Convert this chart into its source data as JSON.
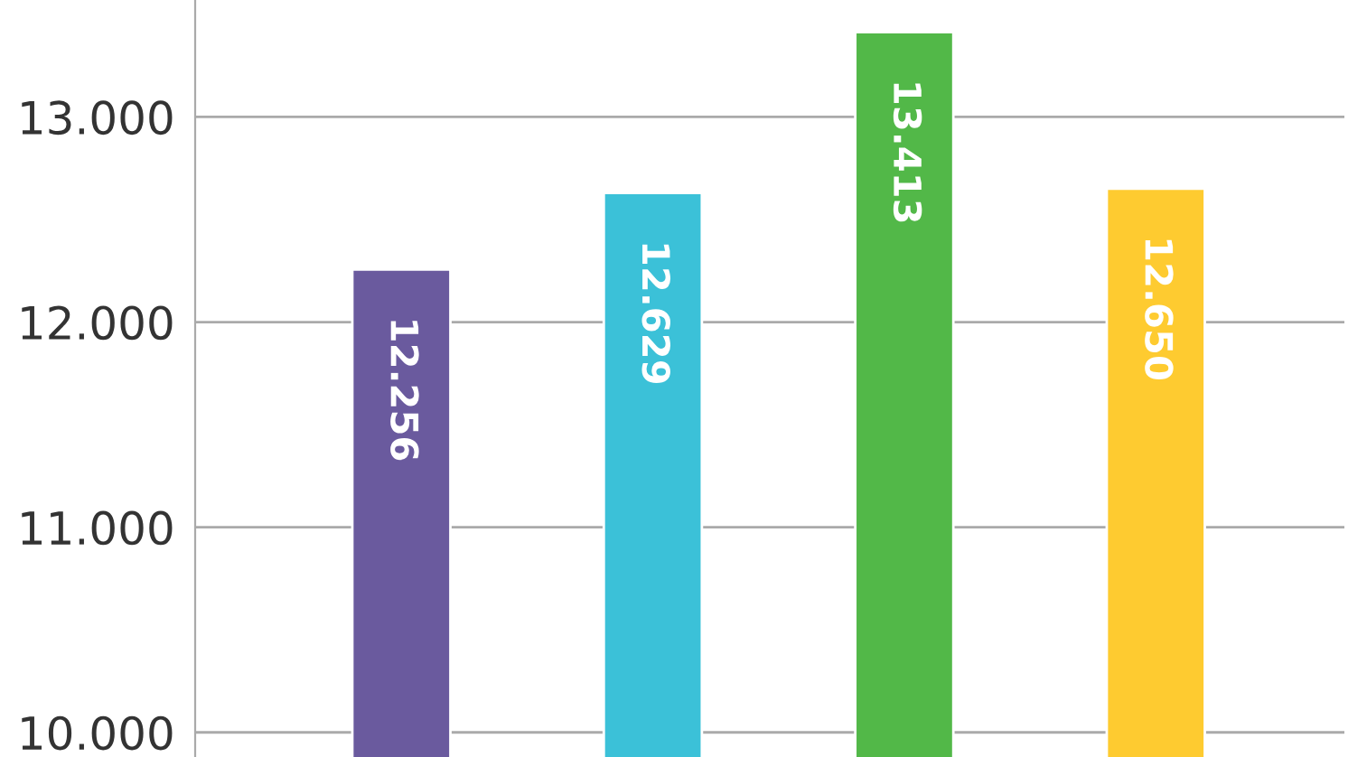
{
  "chart_data": {
    "type": "bar",
    "categories": [
      null,
      null,
      null,
      null
    ],
    "values": [
      12256,
      12629,
      13413,
      12650
    ],
    "colors": [
      "#6a5a9e",
      "#3bc1d8",
      "#52b848",
      "#fecb30"
    ],
    "value_labels": [
      "12.256",
      "12.629",
      "13.413",
      "12.650"
    ],
    "ylim": [
      9880,
      13570
    ],
    "yticks": [
      {
        "value": 10000,
        "label": "10.000"
      },
      {
        "value": 11000,
        "label": "11.000"
      },
      {
        "value": 12000,
        "label": "12.000"
      },
      {
        "value": 13000,
        "label": "13.000"
      }
    ],
    "grid": "y"
  }
}
